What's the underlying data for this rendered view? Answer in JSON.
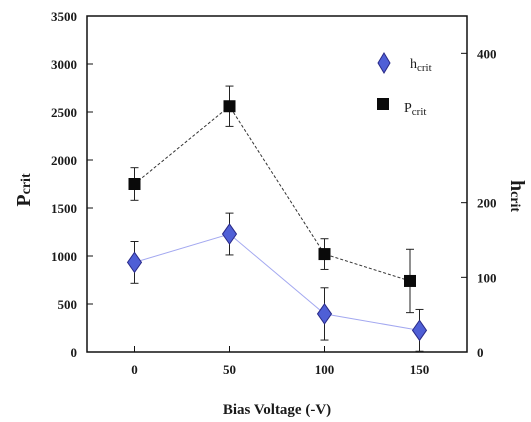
{
  "chart_data": {
    "type": "scatter",
    "title": "",
    "xlabel": "Bias Voltage (-V)",
    "ylabel_left": {
      "main": "P",
      "sub": "crit"
    },
    "ylabel_right": {
      "main": "h",
      "sub": "crit"
    },
    "x_ticks": [
      "0",
      "50",
      "100",
      "150"
    ],
    "y_left_ticks": [
      "0",
      "500",
      "1000",
      "1500",
      "2000",
      "2500",
      "3000",
      "3500"
    ],
    "y_right_ticks": [
      "0",
      "100",
      "200",
      "400"
    ],
    "xlim": [
      -25,
      175
    ],
    "ylim_left": [
      0,
      3500
    ],
    "ylim_right": [
      0,
      450
    ],
    "grid": false,
    "legend_placement": "top-right",
    "series": [
      {
        "name": {
          "main": "h",
          "sub": "crit"
        },
        "axis": "right",
        "marker": "diamond",
        "color": "#4f5fd6",
        "line_color": "#a3a8f0",
        "line_style": "solid",
        "x": [
          0,
          50,
          100,
          150
        ],
        "y": [
          120,
          158,
          51,
          29
        ],
        "err": [
          28,
          28,
          35,
          28
        ]
      },
      {
        "name": {
          "main": "P",
          "sub": "crit"
        },
        "axis": "left",
        "marker": "square",
        "color": "#0a0a0a",
        "line_color": "#333333",
        "line_style": "dashed",
        "x": [
          0,
          50,
          100,
          145
        ],
        "y": [
          1750,
          2560,
          1020,
          740
        ],
        "err": [
          170,
          210,
          160,
          330
        ]
      }
    ]
  }
}
